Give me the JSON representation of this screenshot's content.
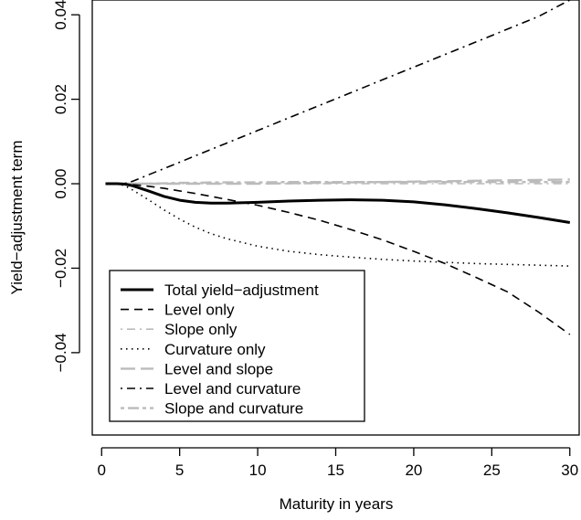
{
  "chart_data": {
    "type": "line",
    "title": "",
    "xlabel": "Maturity in years",
    "ylabel": "Yield−adjustment term",
    "xlim": [
      -0.6,
      30.6
    ],
    "ylim": [
      -0.0595,
      0.0435
    ],
    "x_ticks": [
      0,
      5,
      10,
      15,
      20,
      25,
      30
    ],
    "x_tick_labels": [
      "0",
      "5",
      "10",
      "15",
      "20",
      "25",
      "30"
    ],
    "y_ticks": [
      -0.04,
      -0.02,
      0.0,
      0.02,
      0.04
    ],
    "y_tick_labels": [
      "−0.04",
      "−0.02",
      "0.00",
      "0.02",
      "0.04"
    ],
    "grid": false,
    "legend_position": "bottom-left",
    "x": [
      0.25,
      1,
      1.5,
      2,
      3,
      4,
      5,
      6,
      7,
      8,
      10,
      12,
      14,
      16,
      18,
      20,
      22,
      24,
      26,
      28,
      30
    ],
    "series": [
      {
        "name": "Total yield−adjustment",
        "color": "#000000",
        "line_style": "solid",
        "line_width": 3,
        "values": [
          0,
          0,
          -0.0001,
          -0.0005,
          -0.0017,
          -0.003,
          -0.0039,
          -0.0044,
          -0.0046,
          -0.0046,
          -0.0044,
          -0.0041,
          -0.0039,
          -0.0038,
          -0.0039,
          -0.0043,
          -0.005,
          -0.0059,
          -0.0069,
          -0.008,
          -0.0092
        ]
      },
      {
        "name": "Level only",
        "color": "#000000",
        "line_style": "dashed",
        "line_width": 1.6,
        "values": [
          0,
          0,
          -0.0001,
          -0.0002,
          -0.0006,
          -0.0011,
          -0.0017,
          -0.0023,
          -0.003,
          -0.0037,
          -0.0051,
          -0.0068,
          -0.0087,
          -0.0109,
          -0.0133,
          -0.016,
          -0.0189,
          -0.0222,
          -0.0256,
          -0.0304,
          -0.0357
        ]
      },
      {
        "name": "Slope only",
        "color": "#bbbbbb",
        "line_style": "dotdash",
        "line_width": 1.6,
        "values": [
          0,
          0,
          0,
          0,
          0,
          0,
          0,
          0,
          0,
          0,
          0,
          0,
          0,
          0,
          0,
          0,
          0,
          0,
          0,
          0,
          0
        ]
      },
      {
        "name": "Curvature only",
        "color": "#000000",
        "line_style": "dotted",
        "line_width": 1.6,
        "values": [
          0,
          0,
          -0.0005,
          -0.0015,
          -0.0038,
          -0.0062,
          -0.0084,
          -0.0103,
          -0.0118,
          -0.013,
          -0.0148,
          -0.016,
          -0.0168,
          -0.0174,
          -0.0179,
          -0.0183,
          -0.0186,
          -0.0189,
          -0.0191,
          -0.0193,
          -0.0195
        ]
      },
      {
        "name": "Level and slope",
        "color": "#bbbbbb",
        "line_style": "longdash",
        "line_width": 2.4,
        "values": [
          0,
          0,
          0,
          0,
          0,
          0,
          0,
          0,
          0,
          0,
          0,
          0.0001,
          0.0002,
          0.0003,
          0.0004,
          0.0005,
          0.0006,
          0.0007,
          0.0008,
          0.0009,
          0.001
        ]
      },
      {
        "name": "Level and curvature",
        "color": "#000000",
        "line_style": "dotdash",
        "line_width": 1.6,
        "values": [
          0,
          0,
          0.0001,
          0.0006,
          0.0021,
          0.0036,
          0.0051,
          0.0066,
          0.0081,
          0.0096,
          0.0126,
          0.0156,
          0.0186,
          0.0216,
          0.0246,
          0.0276,
          0.0306,
          0.0336,
          0.0366,
          0.0396,
          0.0435
        ]
      },
      {
        "name": "Slope and curvature",
        "color": "#bbbbbb",
        "line_style": "twodash",
        "line_width": 2.4,
        "values": [
          0,
          0,
          0,
          0,
          0,
          0.0001,
          0.0002,
          0.0002,
          0.0003,
          0.0003,
          0.0003,
          0.0004,
          0.0004,
          0.0004,
          0.0004,
          0.0004,
          0.0004,
          0.0004,
          0.0004,
          0.0004,
          0.0004
        ]
      }
    ]
  }
}
